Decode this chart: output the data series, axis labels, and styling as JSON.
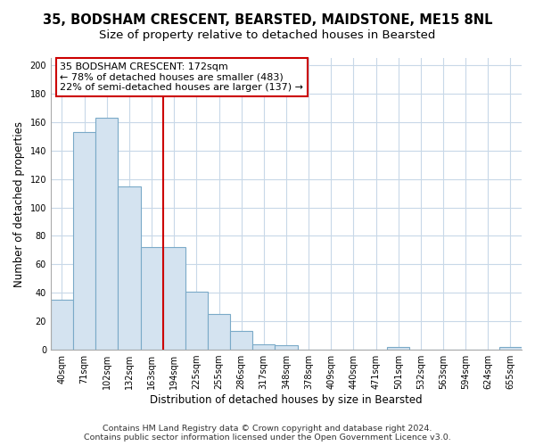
{
  "title": "35, BODSHAM CRESCENT, BEARSTED, MAIDSTONE, ME15 8NL",
  "subtitle": "Size of property relative to detached houses in Bearsted",
  "xlabel": "Distribution of detached houses by size in Bearsted",
  "ylabel": "Number of detached properties",
  "bar_labels": [
    "40sqm",
    "71sqm",
    "102sqm",
    "132sqm",
    "163sqm",
    "194sqm",
    "225sqm",
    "255sqm",
    "286sqm",
    "317sqm",
    "348sqm",
    "378sqm",
    "409sqm",
    "440sqm",
    "471sqm",
    "501sqm",
    "532sqm",
    "563sqm",
    "594sqm",
    "624sqm",
    "655sqm"
  ],
  "bar_values": [
    35,
    153,
    163,
    115,
    72,
    72,
    41,
    25,
    13,
    4,
    3,
    0,
    0,
    0,
    0,
    2,
    0,
    0,
    0,
    0,
    2
  ],
  "bar_color": "#d4e3f0",
  "bar_edge_color": "#7aaac8",
  "vline_x": 4.5,
  "vline_color": "#cc0000",
  "annotation_box_text": "35 BODSHAM CRESCENT: 172sqm\n← 78% of detached houses are smaller (483)\n22% of semi-detached houses are larger (137) →",
  "ann_box_color": "#ffffff",
  "ann_box_edge_color": "#cc0000",
  "ylim": [
    0,
    205
  ],
  "yticks": [
    0,
    20,
    40,
    60,
    80,
    100,
    120,
    140,
    160,
    180,
    200
  ],
  "footer_line1": "Contains HM Land Registry data © Crown copyright and database right 2024.",
  "footer_line2": "Contains public sector information licensed under the Open Government Licence v3.0.",
  "bg_color": "#ffffff",
  "plot_bg_color": "#ffffff",
  "grid_color": "#c8d8e8",
  "title_fontsize": 10.5,
  "subtitle_fontsize": 9.5,
  "axis_label_fontsize": 8.5,
  "tick_fontsize": 7,
  "annotation_fontsize": 8,
  "footer_fontsize": 6.8
}
